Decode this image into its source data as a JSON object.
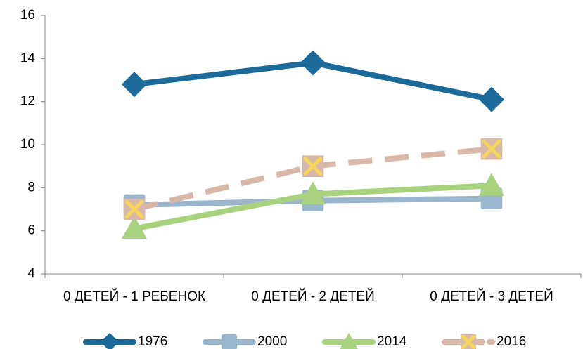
{
  "chart_data": {
    "type": "line",
    "categories": [
      "0 ДЕТЕЙ - 1 РЕБЕНОК",
      "0 ДЕТЕЙ - 2 ДЕТЕЙ",
      "0 ДЕТЕЙ - 3 ДЕТЕЙ"
    ],
    "series": [
      {
        "name": "1976",
        "color": "#1b6a99",
        "marker": "diamond",
        "dashed": false,
        "values": [
          12.8,
          13.8,
          12.1
        ]
      },
      {
        "name": "2000",
        "color": "#9bb5cd",
        "marker": "square",
        "dashed": false,
        "values": [
          7.2,
          7.4,
          7.5
        ]
      },
      {
        "name": "2014",
        "color": "#a9d27f",
        "marker": "triangle",
        "dashed": false,
        "values": [
          6.1,
          7.7,
          8.1
        ]
      },
      {
        "name": "2016",
        "color": "#d8b9a9",
        "marker": "x",
        "marker_color": "#f6d55a",
        "dashed": true,
        "values": [
          7.0,
          9.0,
          9.8
        ]
      }
    ],
    "ylim": [
      4,
      16
    ],
    "yticks": [
      4,
      6,
      8,
      10,
      12,
      14,
      16
    ],
    "legend": "bottom"
  }
}
